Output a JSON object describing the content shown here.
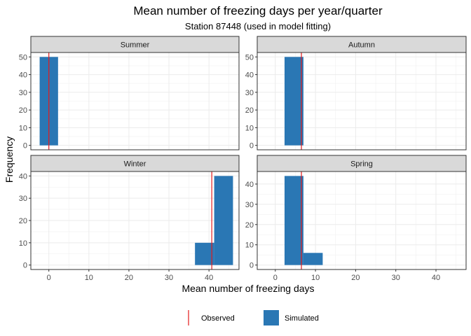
{
  "chart_data": {
    "type": "bar",
    "title": "Mean number of freezing days per year/quarter",
    "subtitle": "Station 87448 (used in model fitting)",
    "xlabel": "Mean number of freezing days",
    "ylabel": "Frequency",
    "xlim": [
      -4.5,
      47.5
    ],
    "x_ticks": [
      0,
      10,
      20,
      30,
      40
    ],
    "grid": true,
    "legend_position": "bottom",
    "legend": [
      {
        "name": "Observed",
        "kind": "line",
        "color": "#e41a1c"
      },
      {
        "name": "Simulated",
        "kind": "fill",
        "color": "#2a77b4"
      }
    ],
    "colors": {
      "simulated": "#2a77b4",
      "observed": "#e41a1c",
      "strip_bg": "#d9d9d9"
    },
    "panels": [
      {
        "name": "Summer",
        "ylim": [
          -2.5,
          52.5
        ],
        "y_ticks": [
          0,
          10,
          20,
          30,
          40,
          50
        ],
        "observed": 0,
        "bins": [
          {
            "x0": -2.3,
            "x1": 2.3,
            "count": 50
          }
        ]
      },
      {
        "name": "Autumn",
        "ylim": [
          -2.5,
          52.5
        ],
        "y_ticks": [
          0,
          10,
          20,
          30,
          40,
          50
        ],
        "observed": 6.5,
        "bins": [
          {
            "x0": 2.3,
            "x1": 7.0,
            "count": 50
          }
        ]
      },
      {
        "name": "Winter",
        "ylim": [
          -2,
          42
        ],
        "y_ticks": [
          0,
          10,
          20,
          30,
          40
        ],
        "observed": 40.7,
        "bins": [
          {
            "x0": 36.5,
            "x1": 41.3,
            "count": 10
          },
          {
            "x0": 41.3,
            "x1": 46.0,
            "count": 40
          }
        ]
      },
      {
        "name": "Spring",
        "ylim": [
          -2.2,
          46.2
        ],
        "y_ticks": [
          0,
          10,
          20,
          30,
          40
        ],
        "observed": 6.5,
        "bins": [
          {
            "x0": 2.3,
            "x1": 7.0,
            "count": 44
          },
          {
            "x0": 7.0,
            "x1": 11.8,
            "count": 6
          }
        ]
      }
    ]
  }
}
